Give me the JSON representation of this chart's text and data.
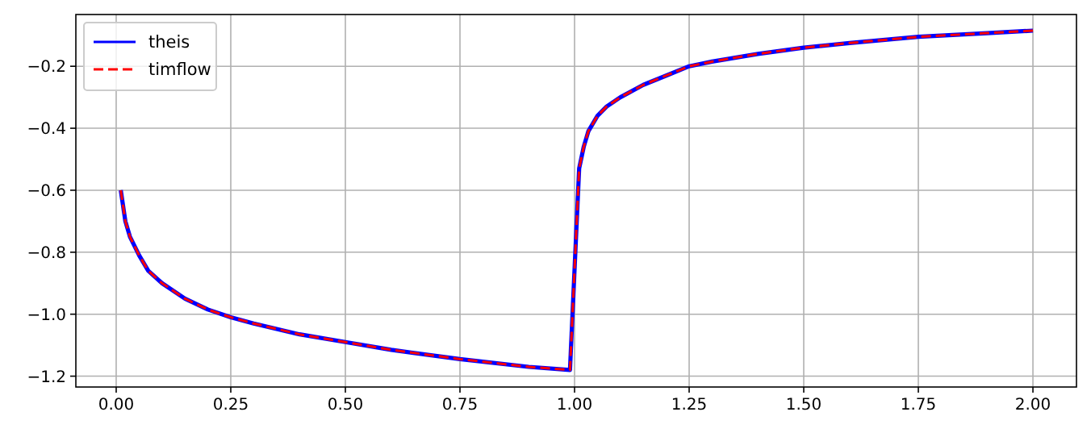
{
  "chart_data": {
    "type": "line",
    "x": [
      0.01,
      0.02,
      0.03,
      0.05,
      0.07,
      0.1,
      0.15,
      0.2,
      0.25,
      0.3,
      0.4,
      0.5,
      0.6,
      0.75,
      0.9,
      0.99,
      1.01,
      1.02,
      1.03,
      1.05,
      1.07,
      1.1,
      1.15,
      1.2,
      1.25,
      1.3,
      1.4,
      1.5,
      1.6,
      1.75,
      1.9,
      2.0
    ],
    "series": [
      {
        "name": "theis",
        "color": "#0000ff",
        "line_style": "solid",
        "values": [
          -0.6,
          -0.7,
          -0.75,
          -0.81,
          -0.86,
          -0.9,
          -0.95,
          -0.985,
          -1.01,
          -1.03,
          -1.065,
          -1.09,
          -1.115,
          -1.145,
          -1.17,
          -1.18,
          -0.53,
          -0.46,
          -0.41,
          -0.36,
          -0.33,
          -0.3,
          -0.26,
          -0.23,
          -0.2,
          -0.185,
          -0.16,
          -0.14,
          -0.125,
          -0.105,
          -0.093,
          -0.085
        ]
      },
      {
        "name": "timflow",
        "color": "#ff0000",
        "line_style": "dashed",
        "values": [
          -0.6,
          -0.7,
          -0.75,
          -0.81,
          -0.86,
          -0.9,
          -0.95,
          -0.985,
          -1.01,
          -1.03,
          -1.065,
          -1.09,
          -1.115,
          -1.145,
          -1.17,
          -1.18,
          -0.53,
          -0.46,
          -0.41,
          -0.36,
          -0.33,
          -0.3,
          -0.26,
          -0.23,
          -0.2,
          -0.185,
          -0.16,
          -0.14,
          -0.125,
          -0.105,
          -0.093,
          -0.085
        ]
      }
    ],
    "xlim": [
      -0.088,
      2.095
    ],
    "ylim": [
      -1.235,
      -0.033
    ],
    "xticks": [
      {
        "value": 0,
        "label": "0.00"
      },
      {
        "value": 0.25,
        "label": "0.25"
      },
      {
        "value": 0.5,
        "label": "0.50"
      },
      {
        "value": 0.75,
        "label": "0.75"
      },
      {
        "value": 1,
        "label": "1.00"
      },
      {
        "value": 1.25,
        "label": "1.25"
      },
      {
        "value": 1.5,
        "label": "1.50"
      },
      {
        "value": 1.75,
        "label": "1.75"
      },
      {
        "value": 2,
        "label": "2.00"
      }
    ],
    "yticks": [
      {
        "value": -1.2,
        "label": "−1.2"
      },
      {
        "value": -1.0,
        "label": "−1.0"
      },
      {
        "value": -0.8,
        "label": "−0.8"
      },
      {
        "value": -0.6,
        "label": "−0.6"
      },
      {
        "value": -0.4,
        "label": "−0.4"
      },
      {
        "value": -0.2,
        "label": "−0.2"
      }
    ],
    "grid": true,
    "legend": "top left"
  }
}
